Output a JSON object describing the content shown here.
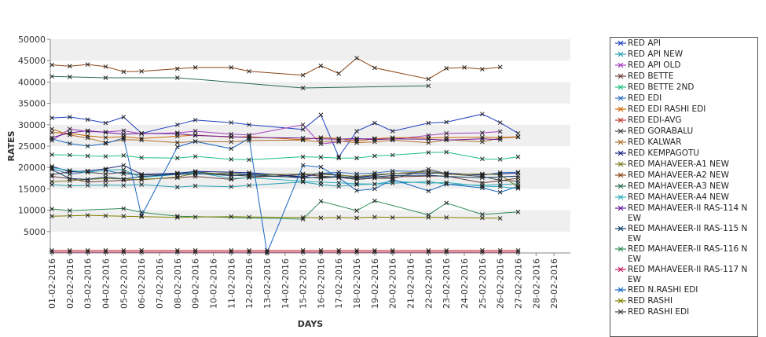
{
  "chart_data": {
    "type": "line",
    "xlabel": "DAYS",
    "ylabel": "RATES",
    "ylim": [
      0,
      50000
    ],
    "yticks": [
      5000,
      10000,
      15000,
      20000,
      25000,
      30000,
      35000,
      40000,
      45000,
      50000
    ],
    "grid": "alternating horizontal bands",
    "legend_position": "right",
    "categories": [
      "01-02-2016",
      "02-02-2016",
      "03-02-2016",
      "04-02-2016",
      "05-02-2016",
      "06-02-2016",
      "07-02-2016",
      "08-02-2016",
      "09-02-2016",
      "10-02-2016",
      "11-02-2016",
      "12-02-2016",
      "13-02-2016",
      "14-02-2016",
      "15-02-2016",
      "16-02-2016",
      "17-02-2016",
      "18-02-2016",
      "19-02-2016",
      "20-02-2016",
      "21-02-2016",
      "22-02-2016",
      "23-02-2016",
      "24-02-2016",
      "25-02-2016",
      "26-02-2016",
      "27-02-2016",
      "28-02-2016",
      "29-02-2016"
    ],
    "series": [
      {
        "name": "RED API",
        "color": "#1f3fbf",
        "values": [
          31600,
          31800,
          31200,
          30400,
          31800,
          28000,
          null,
          30000,
          31100,
          null,
          30500,
          30000,
          null,
          null,
          28900,
          32300,
          22500,
          28500,
          30400,
          28500,
          null,
          30400,
          30600,
          null,
          32500,
          30500,
          28000,
          null,
          null
        ]
      },
      {
        "name": "RED API NEW",
        "color": "#2a9fb0",
        "values": [
          16000,
          15700,
          15800,
          15900,
          15800,
          16000,
          null,
          15400,
          15700,
          null,
          15500,
          15800,
          null,
          null,
          16600,
          16000,
          15600,
          16000,
          16100,
          16300,
          null,
          16700,
          16100,
          null,
          15800,
          16000,
          16200,
          null,
          null
        ]
      },
      {
        "name": "RED API OLD",
        "color": "#a23fbf",
        "values": [
          26300,
          29000,
          28400,
          28300,
          28600,
          27900,
          null,
          28100,
          28500,
          null,
          27800,
          27600,
          null,
          null,
          30000,
          25500,
          26000,
          26600,
          26800,
          26600,
          null,
          27500,
          28000,
          null,
          28100,
          28400,
          null,
          null,
          null
        ]
      },
      {
        "name": "RED BETTE",
        "color": "#6b3a3a",
        "values": [
          17900,
          17400,
          16600,
          16800,
          17000,
          17200,
          null,
          17600,
          17900,
          null,
          17200,
          17700,
          null,
          null,
          18300,
          18000,
          17700,
          17200,
          17500,
          17800,
          null,
          18000,
          18000,
          null,
          16400,
          16900,
          17500,
          null,
          null
        ]
      },
      {
        "name": "RED BETTE 2ND",
        "color": "#20c080",
        "values": [
          23000,
          22900,
          22700,
          22600,
          22800,
          22300,
          null,
          22200,
          22600,
          null,
          21900,
          21800,
          null,
          null,
          22500,
          22400,
          22200,
          22200,
          22700,
          22900,
          null,
          23500,
          23600,
          null,
          22000,
          21900,
          22500,
          null,
          null
        ]
      },
      {
        "name": "RED EDI",
        "color": "#2f6fbf",
        "values": [
          19800,
          18400,
          19000,
          19300,
          18500,
          18300,
          null,
          18400,
          18500,
          null,
          18600,
          18500,
          null,
          null,
          18300,
          18600,
          18900,
          18500,
          18700,
          19200,
          null,
          19000,
          18700,
          null,
          18200,
          18800,
          18900,
          null,
          null
        ]
      },
      {
        "name": "RED EDI RASHI EDI",
        "color": "#cc6600",
        "values": [
          28200,
          28000,
          27400,
          27000,
          27200,
          26800,
          null,
          27300,
          27600,
          null,
          27100,
          27200,
          null,
          null,
          26500,
          27000,
          26800,
          26200,
          26700,
          27000,
          null,
          26900,
          27000,
          null,
          27100,
          27000,
          27200,
          null,
          null
        ]
      },
      {
        "name": "RED EDI-AVG",
        "color": "#c0392b",
        "values": [
          600,
          600,
          600,
          600,
          600,
          600,
          null,
          600,
          600,
          null,
          600,
          600,
          600,
          null,
          600,
          600,
          600,
          600,
          600,
          600,
          null,
          600,
          600,
          null,
          600,
          600,
          600,
          null,
          null
        ]
      },
      {
        "name": "RED GORABALU",
        "color": "#444444",
        "values": [
          18300,
          19000,
          18900,
          18500,
          18900,
          18200,
          null,
          18700,
          19000,
          null,
          18200,
          18000,
          null,
          null,
          17800,
          17500,
          17800,
          17200,
          17500,
          17400,
          null,
          19600,
          18500,
          null,
          17900,
          17000,
          16800,
          null,
          null
        ]
      },
      {
        "name": "RED KALWAR",
        "color": "#b07030",
        "values": [
          29000,
          27600,
          26900,
          25800,
          26500,
          26400,
          null,
          25800,
          26100,
          null,
          26000,
          26300,
          null,
          null,
          26400,
          26000,
          26200,
          25800,
          26000,
          26400,
          null,
          25800,
          26500,
          null,
          26000,
          26900,
          27100,
          null,
          null
        ]
      },
      {
        "name": "RED KEMPAGOTU",
        "color": "#1a237e",
        "values": [
          20300,
          19000,
          19200,
          19700,
          20500,
          18400,
          null,
          18600,
          19100,
          null,
          18900,
          18800,
          null,
          null,
          17800,
          18600,
          18300,
          17700,
          18100,
          18600,
          null,
          18700,
          18600,
          null,
          18300,
          18500,
          18700,
          null,
          null
        ]
      },
      {
        "name": "RED MAHAVEER-A1 NEW",
        "color": "#7a7a20",
        "values": [
          16700,
          16900,
          17200,
          17400,
          17300,
          17100,
          null,
          17800,
          18600,
          null,
          18600,
          18200,
          null,
          null,
          18500,
          18400,
          18200,
          17900,
          18300,
          18600,
          null,
          19000,
          18400,
          null,
          18500,
          18300,
          15400,
          null,
          null
        ]
      },
      {
        "name": "RED MAHAVEER-A2 NEW",
        "color": "#8b4513",
        "values": [
          44000,
          43700,
          44100,
          43600,
          42400,
          42500,
          null,
          43100,
          43400,
          null,
          43400,
          42500,
          null,
          null,
          41600,
          43800,
          42000,
          45600,
          43300,
          null,
          null,
          40700,
          43200,
          43400,
          43000,
          43500,
          null,
          null,
          null
        ]
      },
      {
        "name": "RED MAHAVEER-A3 NEW",
        "color": "#2e6b4f",
        "values": [
          41300,
          41200,
          null,
          41000,
          null,
          null,
          null,
          41000,
          null,
          null,
          null,
          null,
          null,
          null,
          38600,
          null,
          null,
          null,
          null,
          null,
          null,
          39100,
          null,
          null,
          null,
          null,
          null,
          null,
          null
        ]
      },
      {
        "name": "RED MAHAVEER-A4 NEW",
        "color": "#30b0c0",
        "values": [
          20000,
          19300,
          18900,
          19400,
          19500,
          17600,
          null,
          18400,
          18900,
          null,
          17400,
          17600,
          null,
          null,
          16800,
          16600,
          16400,
          16200,
          16100,
          16800,
          null,
          16300,
          16500,
          null,
          15600,
          15500,
          15100,
          null,
          null
        ]
      },
      {
        "name": "RED MAHAVEER-II RAS-114 NEW",
        "color": "#6a1b9a",
        "values": [
          27000,
          28100,
          28600,
          28200,
          27800,
          28000,
          null,
          27900,
          27500,
          null,
          27200,
          27000,
          null,
          null,
          26900,
          26700,
          26600,
          26800,
          26500,
          26700,
          null,
          26600,
          26400,
          null,
          26700,
          26500,
          null,
          null,
          null
        ]
      },
      {
        "name": "RED MAHAVEER-II RAS-115 NEW",
        "color": "#0d3b66",
        "values": [
          19500,
          17400,
          17200,
          17800,
          17300,
          17900,
          null,
          18400,
          18600,
          null,
          18100,
          18300,
          null,
          null,
          17600,
          17700,
          17900,
          17500,
          17800,
          18100,
          null,
          18200,
          17900,
          null,
          17600,
          17800,
          18000,
          null,
          null
        ]
      },
      {
        "name": "RED MAHAVEER-II RAS-116 NEW",
        "color": "#2e8b57",
        "values": [
          10300,
          9900,
          null,
          null,
          10400,
          9500,
          null,
          8600,
          null,
          null,
          null,
          null,
          null,
          null,
          7900,
          12100,
          null,
          9900,
          12200,
          null,
          null,
          8900,
          11700,
          null,
          9000,
          null,
          9600,
          null,
          null
        ]
      },
      {
        "name": "RED MAHAVEER-II RAS-117 NEW",
        "color": "#c2185b",
        "values": [
          200,
          200,
          200,
          200,
          200,
          200,
          null,
          200,
          200,
          null,
          200,
          200,
          200,
          null,
          200,
          200,
          200,
          200,
          200,
          200,
          null,
          200,
          200,
          null,
          200,
          200,
          200,
          null,
          null
        ]
      },
      {
        "name": "RED N.RASHI EDI",
        "color": "#1565c0",
        "values": [
          26700,
          25600,
          25000,
          25600,
          26900,
          8700,
          null,
          24800,
          26100,
          null,
          24400,
          26800,
          0,
          null,
          20500,
          20100,
          17600,
          14600,
          15000,
          17200,
          null,
          14500,
          16100,
          null,
          15200,
          14200,
          15600,
          null,
          null
        ]
      },
      {
        "name": "RED RASHI",
        "color": "#808000",
        "values": [
          8600,
          8700,
          8800,
          8700,
          8600,
          8500,
          null,
          8300,
          8400,
          null,
          8500,
          8400,
          null,
          null,
          8300,
          8200,
          8300,
          8200,
          8400,
          8300,
          null,
          8300,
          8300,
          null,
          8200,
          8100,
          null,
          null,
          null
        ]
      },
      {
        "name": "RED RASHI EDI",
        "color": "#444444",
        "values": [
          null,
          null,
          null,
          null,
          null,
          null,
          null,
          null,
          null,
          null,
          null,
          null,
          null,
          null,
          null,
          null,
          null,
          null,
          null,
          null,
          null,
          null,
          null,
          null,
          null,
          null,
          null,
          null,
          null
        ]
      }
    ]
  }
}
